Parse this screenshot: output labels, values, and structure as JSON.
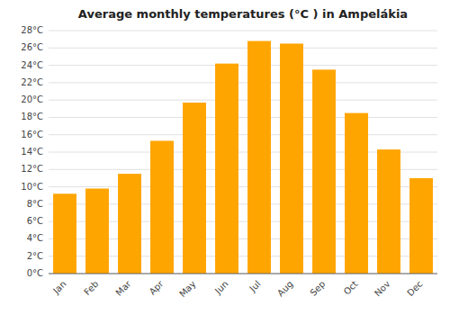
{
  "chart_data": {
    "type": "bar",
    "title": "Average monthly temperatures (°C ) in Ampelákia",
    "categories": [
      "Jan",
      "Feb",
      "Mar",
      "Apr",
      "May",
      "Jun",
      "Jul",
      "Aug",
      "Sep",
      "Oct",
      "Nov",
      "Dec"
    ],
    "values": [
      9.2,
      9.8,
      11.5,
      15.3,
      19.7,
      24.2,
      26.8,
      26.5,
      23.5,
      18.5,
      14.3,
      11.0
    ],
    "color": "#FFA500",
    "ylim": [
      0,
      28
    ],
    "yticks": [
      {
        "value": 0,
        "label": "0°C"
      },
      {
        "value": 2,
        "label": "2°C"
      },
      {
        "value": 4,
        "label": "4°C"
      },
      {
        "value": 6,
        "label": "6°C"
      },
      {
        "value": 8,
        "label": "8°C"
      },
      {
        "value": 10,
        "label": "10°C"
      },
      {
        "value": 12,
        "label": "12°C"
      },
      {
        "value": 14,
        "label": "14°C"
      },
      {
        "value": 16,
        "label": "16°C"
      },
      {
        "value": 18,
        "label": "18°C"
      },
      {
        "value": 20,
        "label": "20°C"
      },
      {
        "value": 22,
        "label": "22°C"
      },
      {
        "value": 24,
        "label": "24°C"
      },
      {
        "value": 26,
        "label": "26°C"
      },
      {
        "value": 28,
        "label": "28°C"
      }
    ],
    "grid": true
  }
}
